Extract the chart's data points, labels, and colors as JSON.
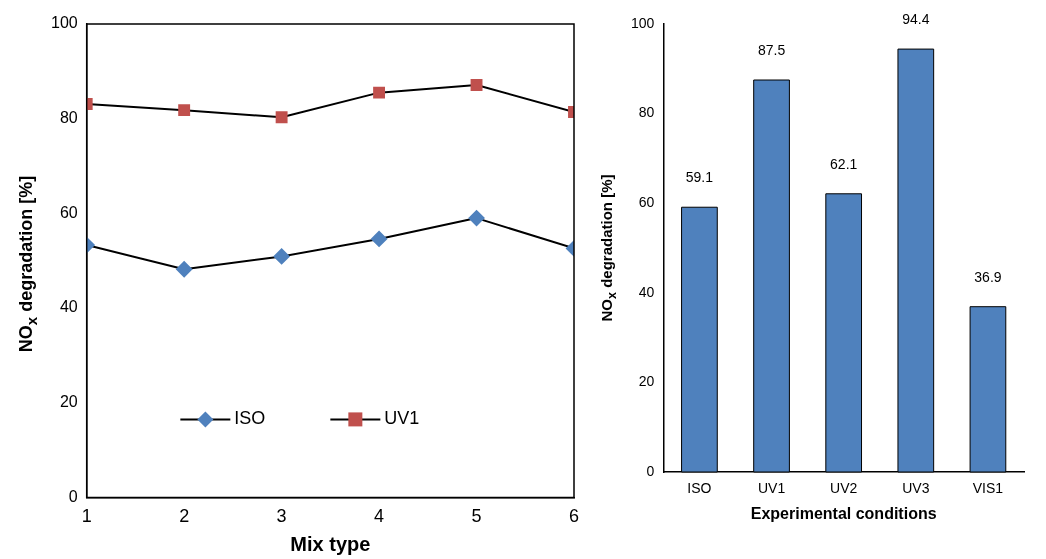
{
  "chart_data": [
    {
      "type": "line",
      "xlabel": "Mix type",
      "ylabel": "NO$_{x}$ degradation [%]",
      "x": [
        1,
        2,
        3,
        4,
        5,
        6
      ],
      "xlim": [
        1,
        6
      ],
      "xticks": [
        1,
        2,
        3,
        4,
        5,
        6
      ],
      "ylim": [
        0,
        100
      ],
      "yticks": [
        0,
        20,
        40,
        60,
        80,
        100
      ],
      "grid": false,
      "legend": "bottom",
      "line_style": "solid",
      "series": [
        {
          "name": "ISO",
          "color": "#4f81bd",
          "marker": "diamond",
          "values": [
            53.3,
            48.2,
            50.9,
            54.6,
            59.0,
            52.6
          ]
        },
        {
          "name": "UV1",
          "color": "#c0504d",
          "marker": "square",
          "values": [
            83.1,
            81.8,
            80.3,
            85.5,
            87.1,
            81.4
          ]
        }
      ]
    },
    {
      "type": "bar",
      "xlabel": "Experimental conditions",
      "ylabel": "NO$_{x}$ degradation [%]",
      "categories": [
        "ISO",
        "UV1",
        "UV2",
        "UV3",
        "VIS1"
      ],
      "values": [
        59.1,
        87.5,
        62.1,
        94.4,
        36.9
      ],
      "color": "#4f81bd",
      "ylim": [
        0,
        100
      ],
      "yticks": [
        0,
        20,
        40,
        60,
        80,
        100
      ],
      "grid": false,
      "data_labels": true
    }
  ]
}
